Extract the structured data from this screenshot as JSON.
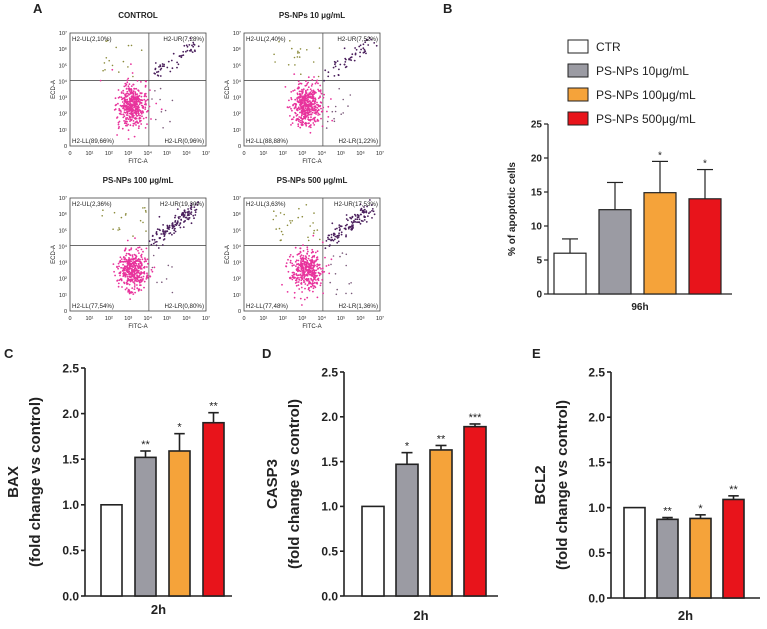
{
  "colors": {
    "ctr": "#ffffff",
    "g10": "#9b9ba3",
    "g100": "#f5a33a",
    "g500": "#e8141b",
    "pink": "#e8339c",
    "purple": "#4a1f5c",
    "olive": "#8a8a3a"
  },
  "panel_letters": {
    "A": "A",
    "B": "B",
    "C": "C",
    "D": "D",
    "E": "E"
  },
  "chart_data": [
    {
      "panel": "A",
      "type": "scatter",
      "description_type": "flow-cytometry dot plots",
      "xlabel": "FITC-A",
      "ylabel": "ECD-A",
      "tick_labels": [
        "0",
        "10¹",
        "10²",
        "10³",
        "10⁴",
        "10⁵",
        "10⁶",
        "10⁷"
      ],
      "plots": [
        {
          "title": "CONTROL",
          "UL": "H2-UL(2,10%)",
          "UR": "H2-UR(7,28%)",
          "LL": "H2-LL(89,66%)",
          "LR": "H2-LR(0,96%)",
          "UL_val": 2.1,
          "UR_val": 7.28,
          "LL_val": 89.66,
          "LR_val": 0.96
        },
        {
          "title": "PS-NPs 10 μg/mL",
          "UL": "H2-UL(2,40%)",
          "UR": "H2-UR(7,52%)",
          "LL": "H2-LL(88,88%)",
          "LR": "H2-LR(1,22%)",
          "UL_val": 2.4,
          "UR_val": 7.52,
          "LL_val": 88.88,
          "LR_val": 1.22
        },
        {
          "title": "PS-NPs 100 μg/mL",
          "UL": "H2-UL(2,36%)",
          "UR": "H2-UR(19,30%)",
          "LL": "H2-LL(77,54%)",
          "LR": "H2-LR(0,80%)",
          "UL_val": 2.36,
          "UR_val": 19.3,
          "LL_val": 77.54,
          "LR_val": 0.8
        },
        {
          "title": "PS-NPs 500 μg/mL",
          "UL": "H2-UL(3,63%)",
          "UR": "H2-UR(17,53%)",
          "LL": "H2-LL(77,48%)",
          "LR": "H2-LR(1,36%)",
          "UL_val": 3.63,
          "UR_val": 17.53,
          "LL_val": 77.48,
          "LR_val": 1.36
        }
      ]
    },
    {
      "panel": "B",
      "type": "bar",
      "ylabel": "% of apoptotic cells",
      "xlabel": "96h",
      "ylim": [
        0,
        25
      ],
      "yticks": [
        0,
        5,
        10,
        15,
        20,
        25
      ],
      "legend": [
        "CTR",
        "PS-NPs 10μg/mL",
        "PS-NPs 100μg/mL",
        "PS-NPs 500μg/mL"
      ],
      "series": [
        {
          "name": "CTR",
          "value": 6.0,
          "error": 2.1,
          "sig": ""
        },
        {
          "name": "PS-NPs 10μg/mL",
          "value": 12.4,
          "error": 4.0,
          "sig": ""
        },
        {
          "name": "PS-NPs 100μg/mL",
          "value": 14.9,
          "error": 4.6,
          "sig": "*"
        },
        {
          "name": "PS-NPs 500μg/mL",
          "value": 14.0,
          "error": 4.3,
          "sig": "*"
        }
      ]
    },
    {
      "panel": "C",
      "type": "bar",
      "ylabel": "BAX",
      "ylabel2": "(fold change vs control)",
      "xlabel": "2h",
      "ylim": [
        0,
        2.5
      ],
      "yticks": [
        "0.0",
        "0.5",
        "1.0",
        "1.5",
        "2.0",
        "2.5"
      ],
      "series": [
        {
          "name": "CTR",
          "value": 1.0,
          "error": 0,
          "sig": ""
        },
        {
          "name": "PS-NPs 10μg/mL",
          "value": 1.52,
          "error": 0.07,
          "sig": "**"
        },
        {
          "name": "PS-NPs 100μg/mL",
          "value": 1.59,
          "error": 0.19,
          "sig": "*"
        },
        {
          "name": "PS-NPs 500μg/mL",
          "value": 1.9,
          "error": 0.11,
          "sig": "**"
        }
      ]
    },
    {
      "panel": "D",
      "type": "bar",
      "ylabel": "CASP3",
      "ylabel2": "(fold change vs control)",
      "xlabel": "2h",
      "ylim": [
        0,
        2.5
      ],
      "yticks": [
        "0.0",
        "0.5",
        "1.0",
        "1.5",
        "2.0",
        "2.5"
      ],
      "series": [
        {
          "name": "CTR",
          "value": 1.0,
          "error": 0,
          "sig": ""
        },
        {
          "name": "PS-NPs 10μg/mL",
          "value": 1.47,
          "error": 0.13,
          "sig": "*"
        },
        {
          "name": "PS-NPs 100μg/mL",
          "value": 1.63,
          "error": 0.05,
          "sig": "**"
        },
        {
          "name": "PS-NPs 500μg/mL",
          "value": 1.89,
          "error": 0.03,
          "sig": "***"
        }
      ]
    },
    {
      "panel": "E",
      "type": "bar",
      "ylabel": "BCL2",
      "ylabel2": "(fold change vs control)",
      "xlabel": "2h",
      "ylim": [
        0,
        2.5
      ],
      "yticks": [
        "0.0",
        "0.5",
        "1.0",
        "1.5",
        "2.0",
        "2.5"
      ],
      "series": [
        {
          "name": "CTR",
          "value": 1.0,
          "error": 0,
          "sig": ""
        },
        {
          "name": "PS-NPs 10μg/mL",
          "value": 0.87,
          "error": 0.02,
          "sig": "**"
        },
        {
          "name": "PS-NPs 100μg/mL",
          "value": 0.88,
          "error": 0.04,
          "sig": "*"
        },
        {
          "name": "PS-NPs 500μg/mL",
          "value": 1.09,
          "error": 0.04,
          "sig": "**"
        }
      ]
    }
  ]
}
